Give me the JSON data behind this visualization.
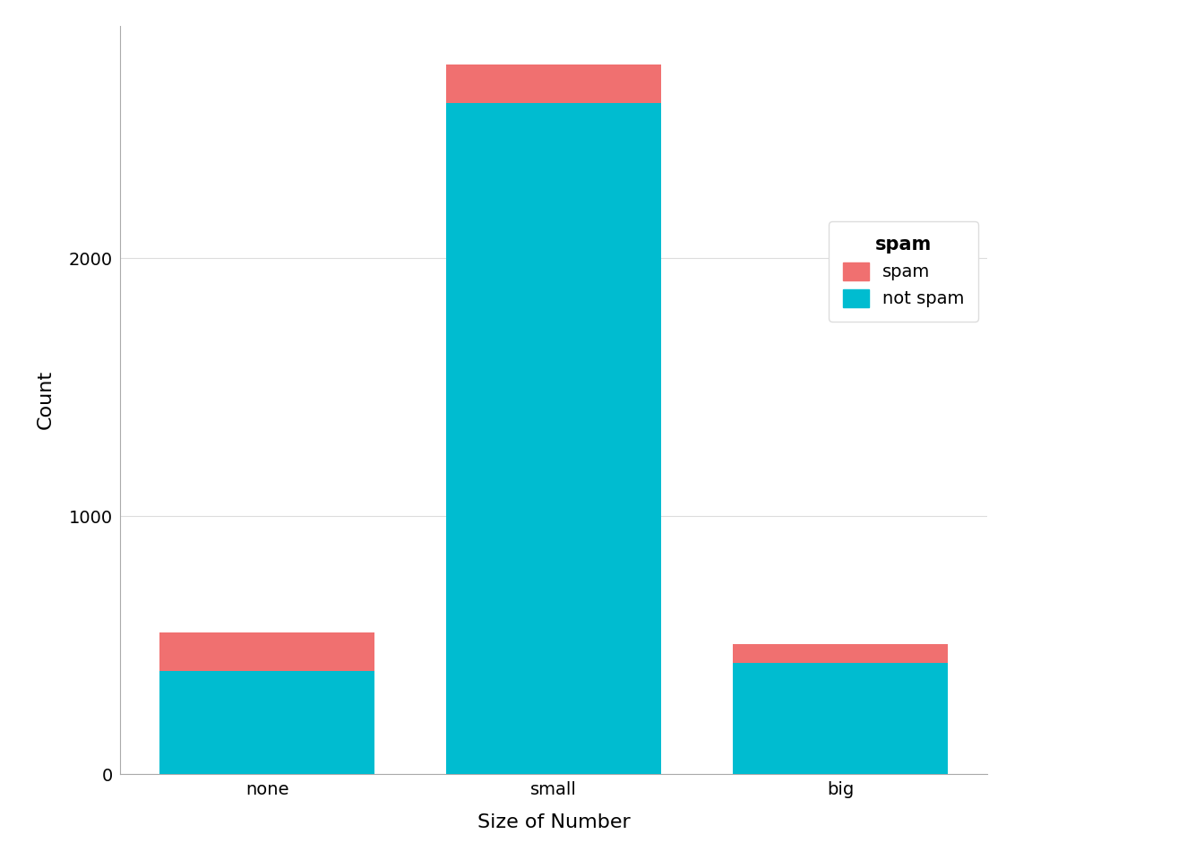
{
  "categories": [
    "none",
    "small",
    "big"
  ],
  "not_spam": [
    400,
    2600,
    430
  ],
  "spam": [
    150,
    150,
    75
  ],
  "color_not_spam": "#00BCD0",
  "color_spam": "#F07070",
  "xlabel": "Size of Number",
  "ylabel": "Count",
  "legend_title": "spam",
  "background_color": "#FFFFFF",
  "panel_background": "#FFFFFF",
  "grid_color": "#DDDDDD",
  "ylim": [
    0,
    2900
  ],
  "yticks": [
    0,
    1000,
    2000
  ],
  "bar_width": 0.75,
  "axis_fontsize": 16,
  "tick_fontsize": 14,
  "legend_fontsize": 14,
  "legend_title_fontsize": 15
}
